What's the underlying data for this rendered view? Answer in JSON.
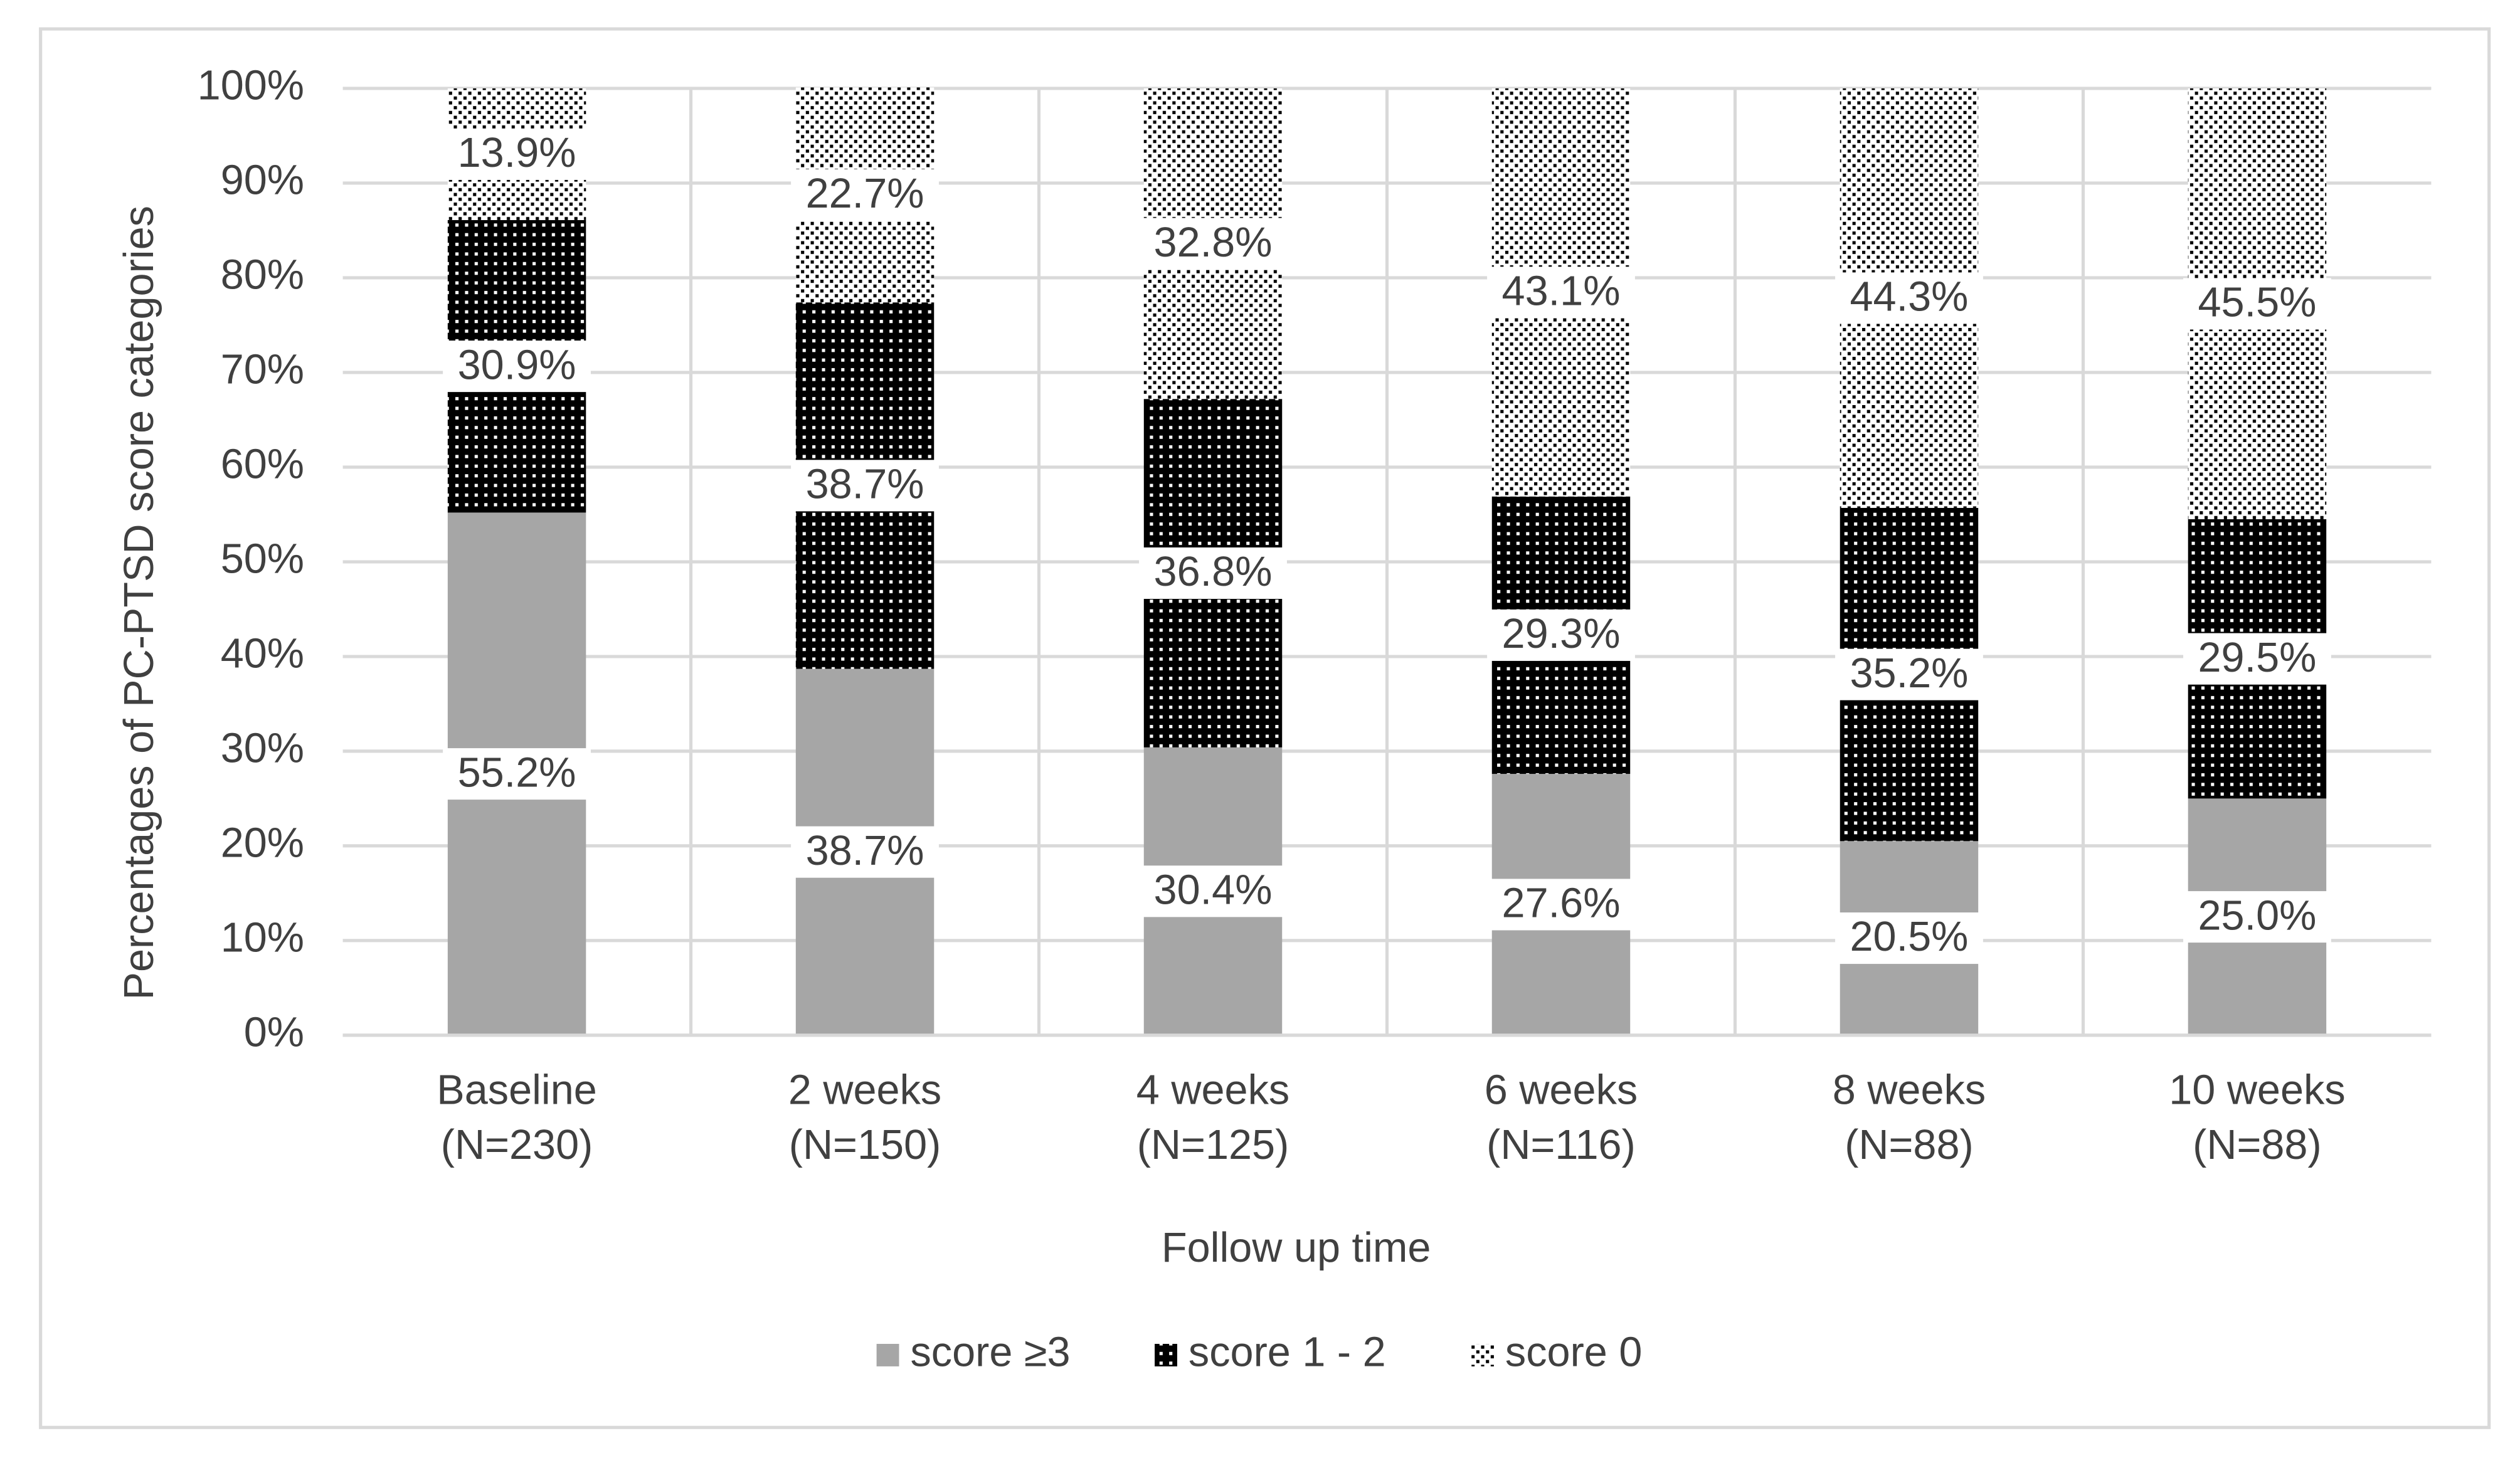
{
  "chart_data": {
    "type": "stacked-bar",
    "x_label": "Follow up time",
    "y_label": "Percentages of PC-PTSD score categories",
    "categories": [
      [
        "Baseline",
        "(N=230)"
      ],
      [
        "2 weeks",
        "(N=150)"
      ],
      [
        "4 weeks",
        "(N=125)"
      ],
      [
        "6 weeks",
        "(N=116)"
      ],
      [
        "8 weeks",
        "(N=88)"
      ],
      [
        "10 weeks",
        "(N=88)"
      ]
    ],
    "series": [
      {
        "name": "score ≥3",
        "color": "#a6a6a6",
        "pattern": "solid",
        "values": [
          55.2,
          38.7,
          30.4,
          27.6,
          20.5,
          25.0
        ],
        "value_labels": [
          "55.2%",
          "38.7%",
          "30.4%",
          "27.6%",
          "20.5%",
          "25.0%"
        ]
      },
      {
        "name": "score 1 - 2",
        "color": "#000000",
        "pattern": "light-dots",
        "values": [
          30.9,
          38.7,
          36.8,
          29.3,
          35.2,
          29.5
        ],
        "value_labels": [
          "30.9%",
          "38.7%",
          "36.8%",
          "29.3%",
          "35.2%",
          "29.5%"
        ]
      },
      {
        "name": "score 0",
        "color": "#000000",
        "pattern": "dark-dots",
        "values": [
          13.9,
          22.7,
          32.8,
          43.1,
          44.3,
          45.5
        ],
        "value_labels": [
          "13.9%",
          "22.7%",
          "32.8%",
          "43.1%",
          "44.3%",
          "45.5%"
        ]
      }
    ],
    "ylim": [
      0,
      100
    ],
    "yticks": [
      {
        "value": 0,
        "label": "0%"
      },
      {
        "value": 10,
        "label": "10%"
      },
      {
        "value": 20,
        "label": "20%"
      },
      {
        "value": 30,
        "label": "30%"
      },
      {
        "value": 40,
        "label": "40%"
      },
      {
        "value": 50,
        "label": "50%"
      },
      {
        "value": 60,
        "label": "60%"
      },
      {
        "value": 70,
        "label": "70%"
      },
      {
        "value": 80,
        "label": "80%"
      },
      {
        "value": 90,
        "label": "90%"
      },
      {
        "value": 100,
        "label": "100%"
      }
    ],
    "grid": true,
    "legend": "bottom"
  }
}
